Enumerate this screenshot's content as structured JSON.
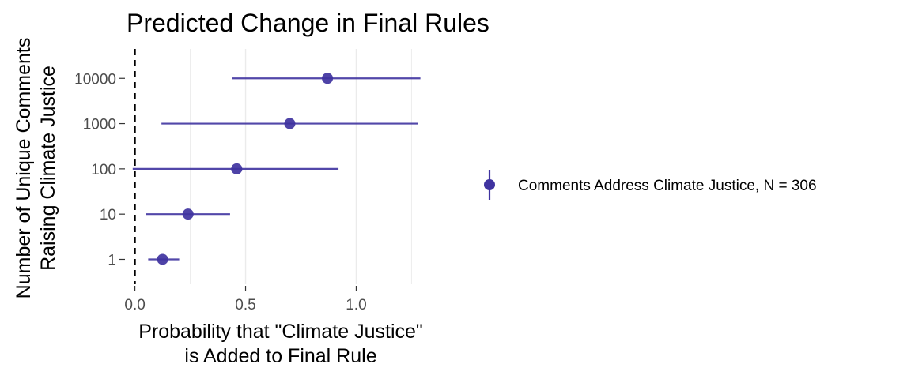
{
  "chart_data": {
    "type": "scatter",
    "title": "Predicted Change in Final Rules",
    "xlabel": [
      "Probability that \"Climate Justice\"",
      "is Added to Final Rule"
    ],
    "ylabel": [
      "Number of Unique Comments",
      "Raising Climate Justice"
    ],
    "x_ticks": [
      "0.0",
      "0.5",
      "1.0"
    ],
    "x_tick_values": [
      0,
      0.5,
      1.0
    ],
    "xlim": [
      -0.02,
      1.32
    ],
    "categories": [
      "1",
      "10",
      "100",
      "1000",
      "10000"
    ],
    "reference_line_x": 0,
    "grid": "vertical major and minor lines only",
    "legend_position": "right",
    "series": [
      {
        "name": "Comments Address Climate Justice, N = 306",
        "color": "#3f33a0",
        "points": [
          {
            "category": "1",
            "estimate": 0.125,
            "lower": 0.06,
            "upper": 0.2
          },
          {
            "category": "10",
            "estimate": 0.24,
            "lower": 0.05,
            "upper": 0.43
          },
          {
            "category": "100",
            "estimate": 0.46,
            "lower": -0.01,
            "upper": 0.92
          },
          {
            "category": "1000",
            "estimate": 0.7,
            "lower": 0.12,
            "upper": 1.28
          },
          {
            "category": "10000",
            "estimate": 0.87,
            "lower": 0.44,
            "upper": 1.29
          }
        ]
      }
    ]
  }
}
